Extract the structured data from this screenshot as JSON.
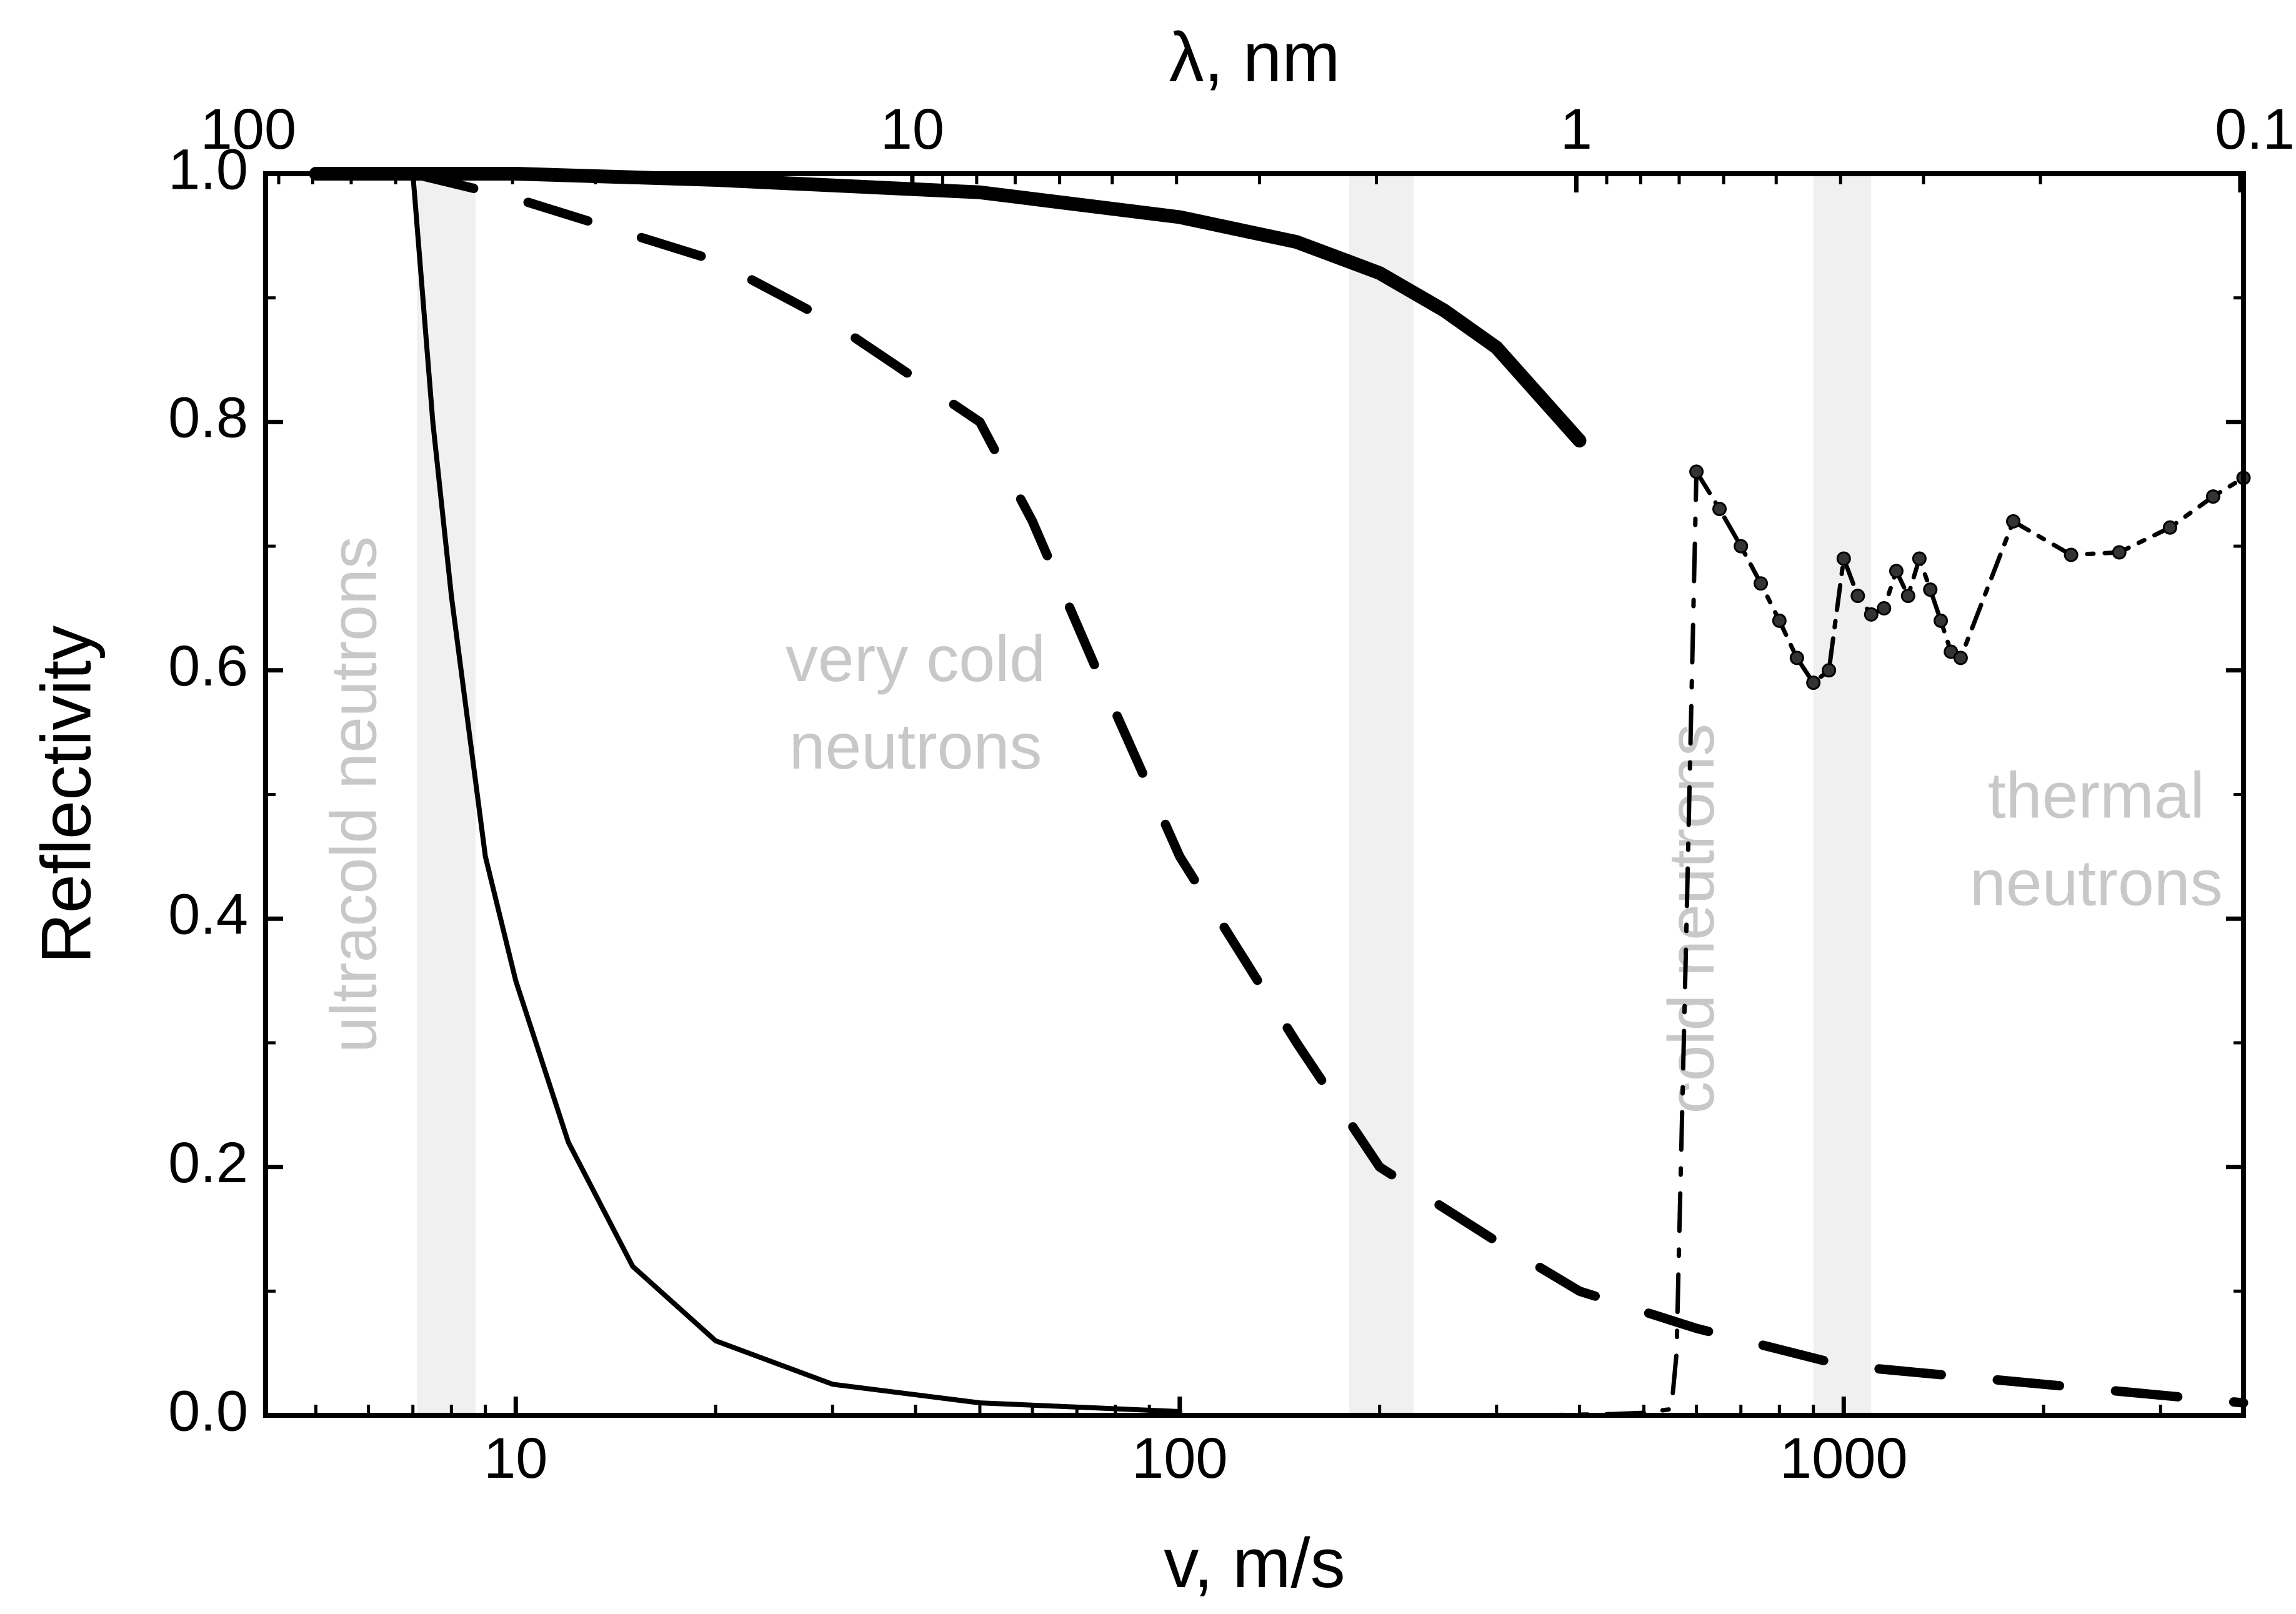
{
  "chart_data": {
    "type": "line",
    "xlabel": "v, m/s",
    "ylabel": "Reflectivity",
    "x2label": "λ, nm",
    "xscale": "log",
    "x2scale": "log (reciprocal of v)",
    "xlim": [
      4.2,
      4000
    ],
    "ylim": [
      0,
      1.0
    ],
    "x_ticks": [
      {
        "value": 10,
        "label": "10"
      },
      {
        "value": 100,
        "label": "100"
      },
      {
        "value": 1000,
        "label": "1000"
      }
    ],
    "x2_ticks": [
      {
        "value": 100,
        "label": "100"
      },
      {
        "value": 10,
        "label": "10"
      },
      {
        "value": 1,
        "label": "1"
      },
      {
        "value": 0.1,
        "label": "0.1"
      }
    ],
    "y_ticks": [
      {
        "value": 0,
        "label": "0.0"
      },
      {
        "value": 0.2,
        "label": "0.2"
      },
      {
        "value": 0.4,
        "label": "0.4"
      },
      {
        "value": 0.6,
        "label": "0.6"
      },
      {
        "value": 0.8,
        "label": "0.8"
      },
      {
        "value": 1.0,
        "label": "1.0"
      }
    ],
    "regions": [
      {
        "label": "ultracold neutrons",
        "x_center": 5.8,
        "y_center": 0.5,
        "orientation": "vertical"
      },
      {
        "label_lines": [
          "very cold",
          "neutrons"
        ],
        "x_center": 40,
        "y_center": 0.57,
        "orientation": "horizontal"
      },
      {
        "label": "cold neutrons",
        "x_center": 600,
        "y_center": 0.4,
        "orientation": "vertical"
      },
      {
        "label_lines": [
          "thermal",
          "neutrons"
        ],
        "x_center": 2400,
        "y_center": 0.46,
        "orientation": "horizontal"
      }
    ],
    "boundary_bands": [
      {
        "x_from": 7.1,
        "x_to": 8.7
      },
      {
        "x_from": 180,
        "x_to": 225
      },
      {
        "x_from": 900,
        "x_to": 1100
      }
    ],
    "series": [
      {
        "style": "thin-solid",
        "x": [
          4.9,
          6.5,
          7.0,
          7.5,
          8,
          9,
          10,
          12,
          15,
          20,
          30,
          50,
          100
        ],
        "y": [
          1.0,
          1.0,
          1.0,
          0.8,
          0.66,
          0.45,
          0.35,
          0.22,
          0.12,
          0.06,
          0.025,
          0.01,
          0.003
        ]
      },
      {
        "style": "dashed",
        "x": [
          7,
          10,
          20,
          30,
          50,
          60,
          75,
          100,
          150,
          200,
          300,
          400,
          600,
          1000,
          2000,
          4000
        ],
        "y": [
          1.0,
          0.98,
          0.93,
          0.88,
          0.8,
          0.72,
          0.6,
          0.45,
          0.3,
          0.2,
          0.14,
          0.1,
          0.07,
          0.04,
          0.025,
          0.01
        ]
      },
      {
        "style": "thick-solid",
        "x": [
          5,
          10,
          20,
          50,
          100,
          150,
          200,
          250,
          300,
          400
        ],
        "y": [
          1.0,
          1.0,
          0.995,
          0.985,
          0.965,
          0.945,
          0.92,
          0.89,
          0.86,
          0.785
        ]
      },
      {
        "style": "dash-dot",
        "x": [
          250,
          350,
          450,
          500,
          550,
          560,
          580,
          600
        ],
        "y": [
          0.0,
          0.0,
          0.001,
          0.002,
          0.005,
          0.05,
          0.4,
          0.76
        ]
      },
      {
        "style": "dash-dot-markers",
        "x": [
          600,
          650,
          700,
          750,
          800,
          850,
          900,
          950,
          1000,
          1050,
          1100,
          1150,
          1200,
          1250,
          1300,
          1350,
          1400,
          1450,
          1500,
          1800,
          2200,
          2600,
          3100,
          3600,
          4000
        ],
        "y": [
          0.76,
          0.73,
          0.7,
          0.67,
          0.64,
          0.61,
          0.59,
          0.6,
          0.69,
          0.66,
          0.645,
          0.65,
          0.68,
          0.66,
          0.69,
          0.665,
          0.64,
          0.615,
          0.61,
          0.72,
          0.693,
          0.695,
          0.715,
          0.74,
          0.755
        ]
      }
    ]
  }
}
